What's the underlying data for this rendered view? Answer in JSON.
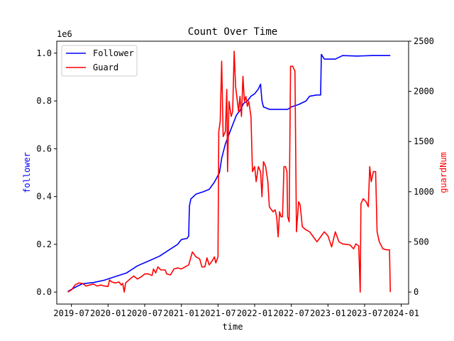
{
  "chart_data": {
    "type": "line",
    "title": "Count Over Time",
    "xlabel": "time",
    "ylabel_left": "follower",
    "ylabel_right": "guardNum",
    "left_multiplier_label": "1e6",
    "x_tick_labels": [
      "2019-07",
      "2020-01",
      "2020-07",
      "2021-01",
      "2021-07",
      "2022-01",
      "2022-07",
      "2023-01",
      "2023-07",
      "2024-01"
    ],
    "x_ticks": [
      2019.5,
      2020.0,
      2020.5,
      2021.0,
      2021.5,
      2022.0,
      2022.5,
      2023.0,
      2023.5,
      2024.0
    ],
    "xlim": [
      2019.3,
      2024.1
    ],
    "ylim_left": [
      -0.05,
      1.05
    ],
    "left_ticks": [
      0.0,
      0.2,
      0.4,
      0.6,
      0.8,
      1.0
    ],
    "left_tick_labels": [
      "0.0",
      "0.2",
      "0.4",
      "0.6",
      "0.8",
      "1.0"
    ],
    "ylim_right": [
      -120,
      2500
    ],
    "right_ticks": [
      0,
      500,
      1000,
      1500,
      2000,
      2500
    ],
    "right_tick_labels": [
      "0",
      "500",
      "1000",
      "1500",
      "2000",
      "2500"
    ],
    "grid": false,
    "legend_position": "top-left",
    "series": [
      {
        "name": "Follower",
        "axis": "left",
        "color": "#0000ff",
        "points": [
          [
            2019.45,
            0.002
          ],
          [
            2019.55,
            0.02
          ],
          [
            2019.65,
            0.035
          ],
          [
            2019.8,
            0.04
          ],
          [
            2019.95,
            0.05
          ],
          [
            2020.1,
            0.065
          ],
          [
            2020.25,
            0.08
          ],
          [
            2020.4,
            0.11
          ],
          [
            2020.55,
            0.13
          ],
          [
            2020.7,
            0.15
          ],
          [
            2020.85,
            0.18
          ],
          [
            2020.95,
            0.2
          ],
          [
            2021.0,
            0.22
          ],
          [
            2021.08,
            0.225
          ],
          [
            2021.1,
            0.235
          ],
          [
            2021.11,
            0.36
          ],
          [
            2021.13,
            0.39
          ],
          [
            2021.2,
            0.41
          ],
          [
            2021.3,
            0.42
          ],
          [
            2021.38,
            0.43
          ],
          [
            2021.45,
            0.46
          ],
          [
            2021.52,
            0.5
          ],
          [
            2021.55,
            0.56
          ],
          [
            2021.6,
            0.62
          ],
          [
            2021.65,
            0.66
          ],
          [
            2021.7,
            0.7
          ],
          [
            2021.75,
            0.74
          ],
          [
            2021.8,
            0.76
          ],
          [
            2021.85,
            0.79
          ],
          [
            2021.9,
            0.8
          ],
          [
            2021.95,
            0.82
          ],
          [
            2022.0,
            0.83
          ],
          [
            2022.05,
            0.85
          ],
          [
            2022.08,
            0.87
          ],
          [
            2022.1,
            0.8
          ],
          [
            2022.12,
            0.775
          ],
          [
            2022.2,
            0.765
          ],
          [
            2022.3,
            0.765
          ],
          [
            2022.45,
            0.765
          ],
          [
            2022.5,
            0.775
          ],
          [
            2022.6,
            0.785
          ],
          [
            2022.7,
            0.8
          ],
          [
            2022.75,
            0.82
          ],
          [
            2022.85,
            0.825
          ],
          [
            2022.9,
            0.825
          ],
          [
            2022.91,
            0.995
          ],
          [
            2022.95,
            0.975
          ],
          [
            2023.1,
            0.975
          ],
          [
            2023.2,
            0.99
          ],
          [
            2023.4,
            0.988
          ],
          [
            2023.6,
            0.99
          ],
          [
            2023.85,
            0.99
          ]
        ]
      },
      {
        "name": "Guard",
        "axis": "right",
        "color": "#ff0000",
        "points": [
          [
            2019.45,
            0
          ],
          [
            2019.5,
            20
          ],
          [
            2019.55,
            70
          ],
          [
            2019.6,
            90
          ],
          [
            2019.65,
            85
          ],
          [
            2019.7,
            60
          ],
          [
            2019.75,
            70
          ],
          [
            2019.8,
            80
          ],
          [
            2019.85,
            60
          ],
          [
            2019.9,
            70
          ],
          [
            2019.95,
            60
          ],
          [
            2020.0,
            55
          ],
          [
            2020.02,
            120
          ],
          [
            2020.05,
            100
          ],
          [
            2020.1,
            90
          ],
          [
            2020.15,
            100
          ],
          [
            2020.18,
            70
          ],
          [
            2020.2,
            85
          ],
          [
            2020.22,
            0
          ],
          [
            2020.24,
            90
          ],
          [
            2020.3,
            130
          ],
          [
            2020.35,
            160
          ],
          [
            2020.4,
            130
          ],
          [
            2020.45,
            150
          ],
          [
            2020.5,
            180
          ],
          [
            2020.55,
            180
          ],
          [
            2020.6,
            165
          ],
          [
            2020.62,
            230
          ],
          [
            2020.65,
            190
          ],
          [
            2020.68,
            250
          ],
          [
            2020.72,
            220
          ],
          [
            2020.78,
            220
          ],
          [
            2020.8,
            180
          ],
          [
            2020.85,
            170
          ],
          [
            2020.9,
            230
          ],
          [
            2020.95,
            240
          ],
          [
            2021.0,
            230
          ],
          [
            2021.05,
            250
          ],
          [
            2021.1,
            270
          ],
          [
            2021.15,
            400
          ],
          [
            2021.2,
            350
          ],
          [
            2021.25,
            330
          ],
          [
            2021.28,
            250
          ],
          [
            2021.32,
            250
          ],
          [
            2021.35,
            340
          ],
          [
            2021.38,
            270
          ],
          [
            2021.42,
            310
          ],
          [
            2021.45,
            350
          ],
          [
            2021.47,
            290
          ],
          [
            2021.5,
            350
          ],
          [
            2021.51,
            1600
          ],
          [
            2021.53,
            1700
          ],
          [
            2021.55,
            2300
          ],
          [
            2021.57,
            1550
          ],
          [
            2021.6,
            1600
          ],
          [
            2021.62,
            2020
          ],
          [
            2021.63,
            1200
          ],
          [
            2021.65,
            1900
          ],
          [
            2021.68,
            1750
          ],
          [
            2021.7,
            1800
          ],
          [
            2021.72,
            2400
          ],
          [
            2021.74,
            2050
          ],
          [
            2021.78,
            1800
          ],
          [
            2021.8,
            1950
          ],
          [
            2021.82,
            1750
          ],
          [
            2021.84,
            2150
          ],
          [
            2021.86,
            1900
          ],
          [
            2021.88,
            1950
          ],
          [
            2021.9,
            1850
          ],
          [
            2021.92,
            1900
          ],
          [
            2021.95,
            1750
          ],
          [
            2021.97,
            1200
          ],
          [
            2022.0,
            1250
          ],
          [
            2022.02,
            1100
          ],
          [
            2022.05,
            1250
          ],
          [
            2022.08,
            1200
          ],
          [
            2022.1,
            950
          ],
          [
            2022.12,
            1300
          ],
          [
            2022.15,
            1250
          ],
          [
            2022.18,
            1100
          ],
          [
            2022.2,
            850
          ],
          [
            2022.25,
            800
          ],
          [
            2022.28,
            820
          ],
          [
            2022.3,
            750
          ],
          [
            2022.32,
            550
          ],
          [
            2022.34,
            800
          ],
          [
            2022.36,
            750
          ],
          [
            2022.38,
            750
          ],
          [
            2022.4,
            1250
          ],
          [
            2022.42,
            1250
          ],
          [
            2022.44,
            1200
          ],
          [
            2022.45,
            750
          ],
          [
            2022.47,
            700
          ],
          [
            2022.49,
            2250
          ],
          [
            2022.52,
            2250
          ],
          [
            2022.55,
            2200
          ],
          [
            2022.57,
            600
          ],
          [
            2022.6,
            900
          ],
          [
            2022.62,
            870
          ],
          [
            2022.65,
            650
          ],
          [
            2022.7,
            620
          ],
          [
            2022.75,
            600
          ],
          [
            2022.8,
            550
          ],
          [
            2022.85,
            500
          ],
          [
            2022.9,
            550
          ],
          [
            2022.95,
            600
          ],
          [
            2023.0,
            560
          ],
          [
            2023.05,
            450
          ],
          [
            2023.1,
            600
          ],
          [
            2023.15,
            500
          ],
          [
            2023.2,
            480
          ],
          [
            2023.3,
            470
          ],
          [
            2023.35,
            430
          ],
          [
            2023.38,
            480
          ],
          [
            2023.42,
            460
          ],
          [
            2023.44,
            0
          ],
          [
            2023.45,
            880
          ],
          [
            2023.48,
            930
          ],
          [
            2023.52,
            900
          ],
          [
            2023.55,
            850
          ],
          [
            2023.57,
            1250
          ],
          [
            2023.59,
            1100
          ],
          [
            2023.62,
            1200
          ],
          [
            2023.65,
            1200
          ],
          [
            2023.67,
            600
          ],
          [
            2023.7,
            500
          ],
          [
            2023.75,
            430
          ],
          [
            2023.8,
            420
          ],
          [
            2023.84,
            420
          ],
          [
            2023.85,
            0
          ]
        ]
      }
    ]
  }
}
